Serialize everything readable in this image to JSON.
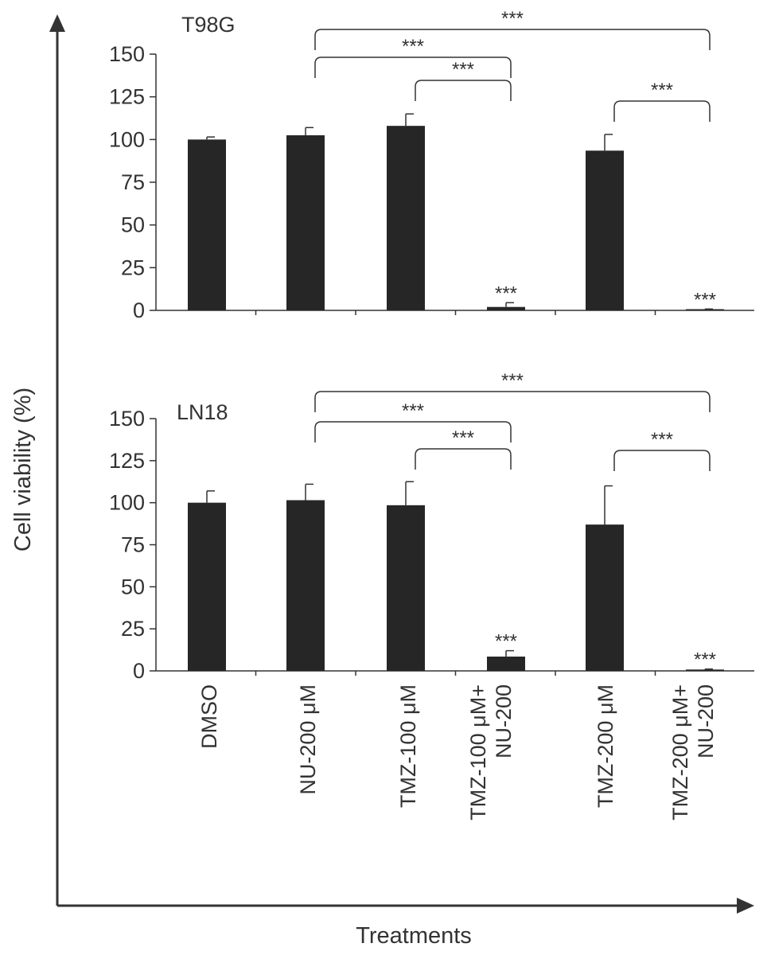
{
  "figure": {
    "y_axis_title": "Cell viability (%)",
    "x_axis_title": "Treatments",
    "category_labels": [
      [
        "DMSO"
      ],
      [
        "NU-200 μM"
      ],
      [
        "TMZ-100 μM"
      ],
      [
        "TMZ-100 μM+",
        "NU-200"
      ],
      [
        "TMZ-200 μM"
      ],
      [
        "TMZ-200 μM+",
        "NU-200"
      ]
    ],
    "colors": {
      "bar": "#262626",
      "axis": "#333333",
      "text": "#333333"
    }
  },
  "chart_data": [
    {
      "type": "bar",
      "title": "T98G",
      "categories": [
        "DMSO",
        "NU-200 μM",
        "TMZ-100 μM",
        "TMZ-100 μM+ NU-200",
        "TMZ-200 μM",
        "TMZ-200 μM+ NU-200"
      ],
      "values": [
        100,
        102.5,
        108,
        2,
        93.5,
        0.5
      ],
      "errors": [
        1.5,
        4.5,
        7,
        2.5,
        9.5,
        0.3
      ],
      "bar_labels": [
        "",
        "",
        "",
        "***",
        "",
        "***"
      ],
      "ylim": [
        0,
        150
      ],
      "yticks": [
        0,
        25,
        50,
        75,
        100,
        125,
        150
      ],
      "ylabel": "Cell viability (%)",
      "grid": false,
      "significance": [
        {
          "from": 1,
          "to": 5,
          "label": "***"
        },
        {
          "from": 1,
          "to": 3,
          "label": "***"
        },
        {
          "from": 2,
          "to": 3,
          "label": "***"
        },
        {
          "from": 4,
          "to": 5,
          "label": "***"
        }
      ]
    },
    {
      "type": "bar",
      "title": "LN18",
      "categories": [
        "DMSO",
        "NU-200 μM",
        "TMZ-100 μM",
        "TMZ-100 μM+ NU-200",
        "TMZ-200 μM",
        "TMZ-200 μM+ NU-200"
      ],
      "values": [
        100,
        101.5,
        98.5,
        8.5,
        87,
        0.8
      ],
      "errors": [
        7,
        9.5,
        14,
        3.5,
        23,
        0.3
      ],
      "bar_labels": [
        "",
        "",
        "",
        "***",
        "",
        "***"
      ],
      "ylim": [
        0,
        150
      ],
      "yticks": [
        0,
        25,
        50,
        75,
        100,
        125,
        150
      ],
      "ylabel": "Cell viability (%)",
      "xlabel": "Treatments",
      "grid": false,
      "significance": [
        {
          "from": 1,
          "to": 5,
          "label": "***"
        },
        {
          "from": 1,
          "to": 3,
          "label": "***"
        },
        {
          "from": 2,
          "to": 3,
          "label": "***"
        },
        {
          "from": 4,
          "to": 5,
          "label": "***"
        }
      ]
    }
  ]
}
